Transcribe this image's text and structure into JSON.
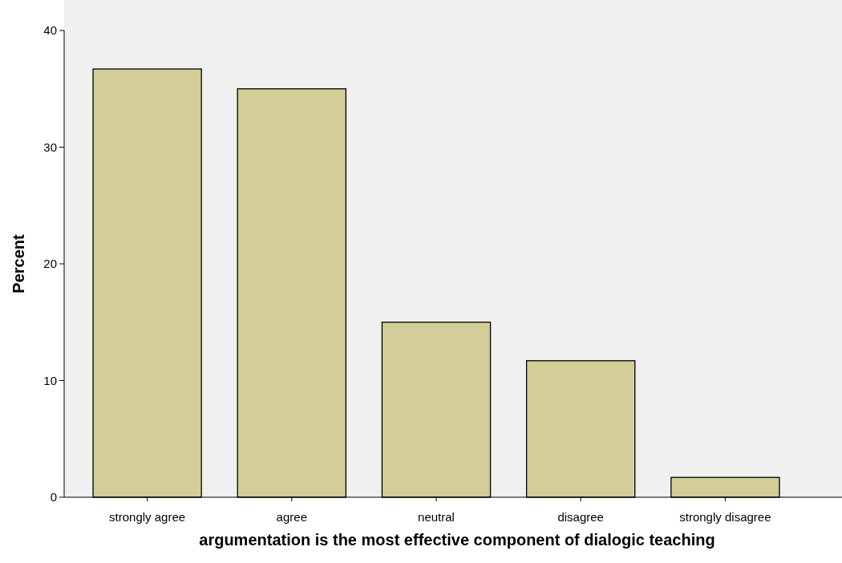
{
  "chart_data": {
    "type": "bar",
    "xlabel": "argumentation is the most effective component of dialogic teaching",
    "ylabel": "Percent",
    "categories": [
      "strongly agree",
      "agree",
      "neutral",
      "disagree",
      "strongly disagree"
    ],
    "values": [
      36.7,
      35.0,
      15.0,
      11.7,
      1.7
    ],
    "color": "#d3ce97",
    "ylim": [
      0,
      40
    ],
    "yticks": [
      0,
      10,
      20,
      30,
      40
    ],
    "grid": false
  }
}
